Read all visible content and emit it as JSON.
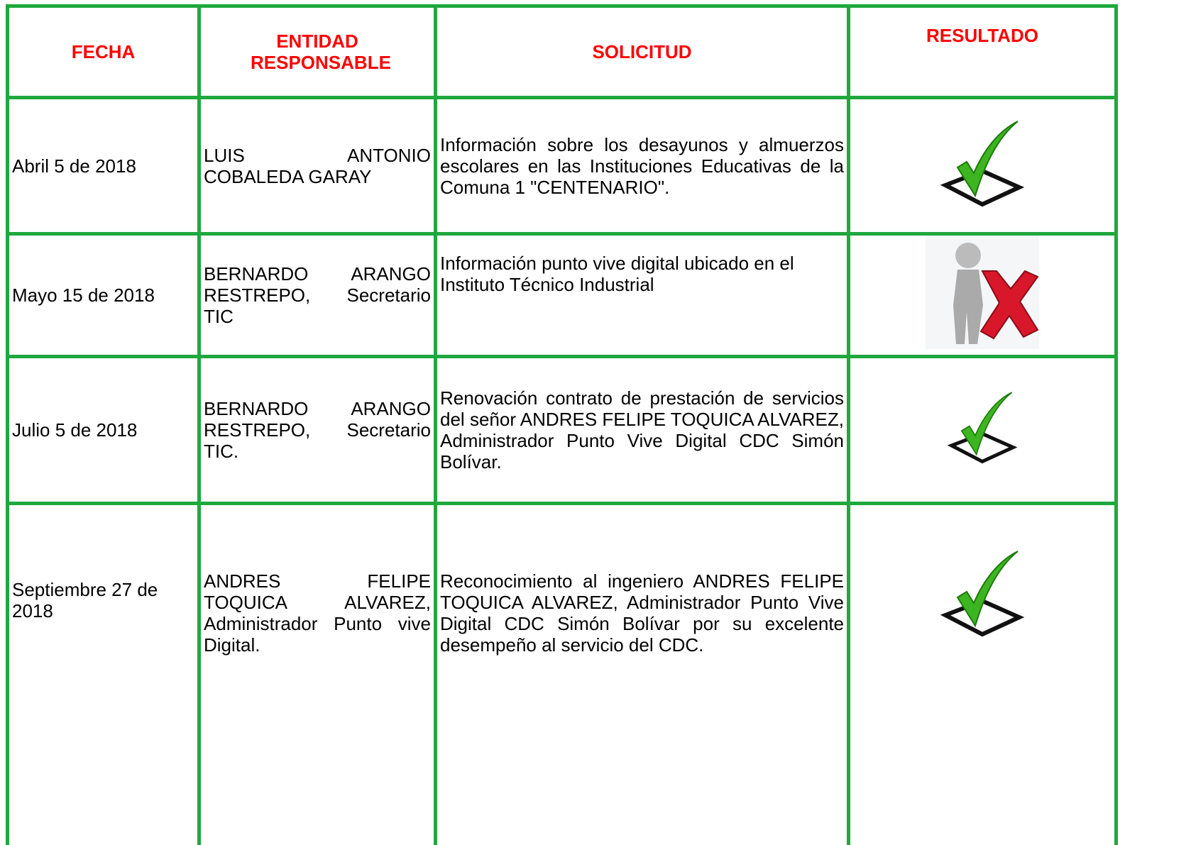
{
  "table": {
    "header": [
      "FECHA",
      "ENTIDAD RESPONSABLE",
      "SOLICITUD",
      "RESULTADO"
    ],
    "rows": [
      [
        "Abril 5 de 2018",
        "LUIS ANTONIO COBALEDA GARAY",
        "Información sobre los desayunos y almuerzos escolares en las Instituciones Educativas de la Comuna 1 \"CENTENARIO\"."
      ],
      [
        "Mayo 15 de 2018",
        "BERNARDO ARANGO RESTREPO, Secretario TIC",
        "Información punto vive digital ubicado en el Instituto Técnico Industrial"
      ],
      [
        "Julio 5 de 2018",
        "BERNARDO ARANGO RESTREPO, Secretario TIC.",
        "Renovación contrato de prestación de servicios del señor ANDRES FELIPE TOQUICA ALVAREZ, Administrador Punto Vive Digital CDC Simón Bolívar."
      ],
      [
        "Septiembre 27 de 2018",
        "ANDRES FELIPE TOQUICA ALVAREZ, Administrador Punto vive Digital.",
        "Reconocimiento al ingeniero ANDRES FELIPE TOQUICA ALVAREZ, Administrador Punto Vive Digital CDC Simón Bolívar por su excelente desempeño al servicio del CDC."
      ]
    ]
  }
}
